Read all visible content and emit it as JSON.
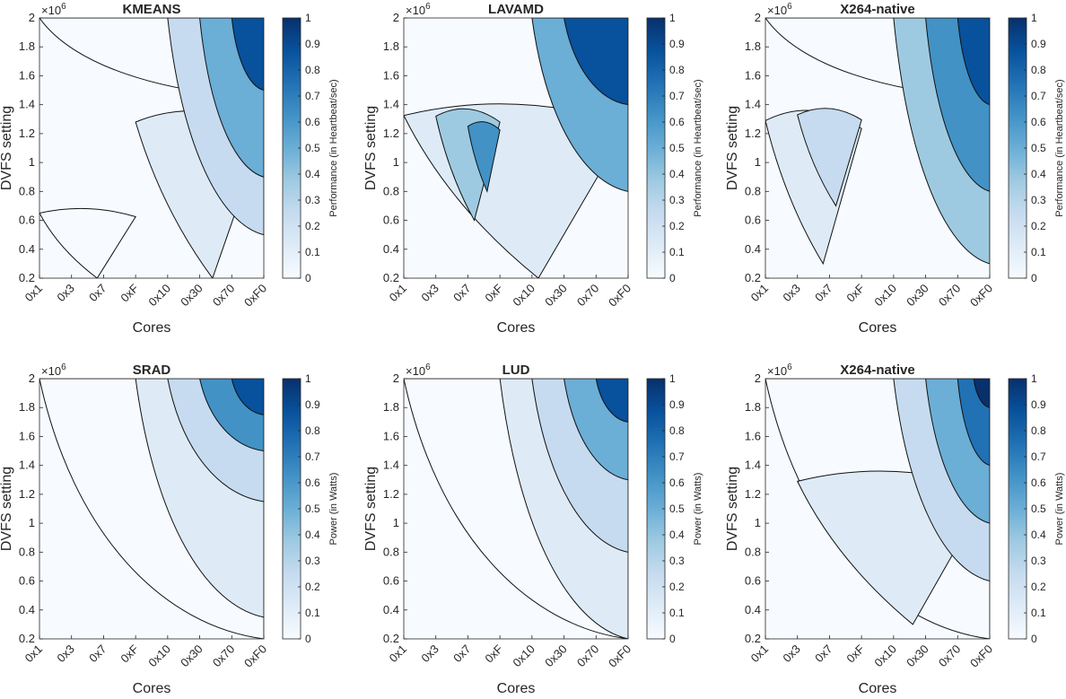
{
  "chart_data": {
    "type": "contour",
    "x_ticklabels": [
      "0x1",
      "0x3",
      "0x7",
      "0xF",
      "0x10",
      "0x30",
      "0x70",
      "0xF0"
    ],
    "y_ticks": [
      0.2,
      0.4,
      0.6,
      0.8,
      1,
      1.2,
      1.4,
      1.6,
      1.8,
      2
    ],
    "y_exponent_label": "×10",
    "y_exponent": "6",
    "colorbar_ticks": [
      0,
      0.1,
      0.2,
      0.3,
      0.4,
      0.5,
      0.6,
      0.7,
      0.8,
      0.9,
      1
    ],
    "colormap": [
      "#f7fbff",
      "#deebf7",
      "#c6dbef",
      "#9ecae1",
      "#6baed6",
      "#4292c6",
      "#2171b5",
      "#08519c",
      "#08306b"
    ],
    "xlabel": "Cores",
    "ylabel": "DVFS setting",
    "panels": [
      {
        "title": "KMEANS",
        "colorbar_label": "Performance (in Heartbeat/sec)",
        "pattern": "x",
        "levels": [
          {
            "x": [
              1,
              8
            ],
            "y": [
              1.45,
              2.0
            ],
            "v": 0.0
          },
          {
            "x": [
              1,
              4
            ],
            "y": [
              0.2,
              0.7
            ],
            "v": 0.05
          },
          {
            "x": [
              4,
              8
            ],
            "y": [
              0.2,
              1.4
            ],
            "v": 0.18
          },
          {
            "x": [
              5,
              8
            ],
            "y": [
              0.5,
              2.0
            ],
            "v": 0.3
          },
          {
            "x": [
              6,
              8
            ],
            "y": [
              0.9,
              2.0
            ],
            "v": 0.55
          },
          {
            "x": [
              7,
              8
            ],
            "y": [
              1.5,
              2.0
            ],
            "v": 0.85
          }
        ]
      },
      {
        "title": "LAVAMD",
        "colorbar_label": "Performance (in Heartbeat/sec)",
        "pattern": "mixed",
        "levels": [
          {
            "x": [
              1,
              8
            ],
            "y": [
              0.2,
              1.45
            ],
            "v": 0.1
          },
          {
            "x": [
              2,
              4
            ],
            "y": [
              0.6,
              1.4
            ],
            "v": 0.4
          },
          {
            "x": [
              3,
              4
            ],
            "y": [
              0.8,
              1.3
            ],
            "v": 0.65
          },
          {
            "x": [
              5,
              8
            ],
            "y": [
              0.8,
              2.0
            ],
            "v": 0.5
          },
          {
            "x": [
              6,
              8
            ],
            "y": [
              1.4,
              2.0
            ],
            "v": 0.85
          }
        ]
      },
      {
        "title": "X264-native",
        "colorbar_label": "Performance (in Heartbeat/sec)",
        "pattern": "x",
        "levels": [
          {
            "x": [
              1,
              8
            ],
            "y": [
              1.45,
              2.0
            ],
            "v": 0.0
          },
          {
            "x": [
              1,
              4
            ],
            "y": [
              0.3,
              1.4
            ],
            "v": 0.08
          },
          {
            "x": [
              2,
              4
            ],
            "y": [
              0.7,
              1.4
            ],
            "v": 0.2
          },
          {
            "x": [
              5,
              8
            ],
            "y": [
              0.3,
              2.0
            ],
            "v": 0.35
          },
          {
            "x": [
              6,
              8
            ],
            "y": [
              0.8,
              2.0
            ],
            "v": 0.6
          },
          {
            "x": [
              7,
              8
            ],
            "y": [
              1.4,
              2.0
            ],
            "v": 0.9
          }
        ]
      },
      {
        "title": "SRAD",
        "colorbar_label": "Power (in Watts)",
        "pattern": "corner",
        "levels": [
          {
            "x": [
              1,
              8
            ],
            "y": [
              0.2,
              2.0
            ],
            "v": 0.0
          },
          {
            "x": [
              4,
              8
            ],
            "y": [
              0.35,
              2.0
            ],
            "v": 0.1
          },
          {
            "x": [
              5,
              8
            ],
            "y": [
              1.15,
              2.0
            ],
            "v": 0.3
          },
          {
            "x": [
              6,
              8
            ],
            "y": [
              1.5,
              2.0
            ],
            "v": 0.6
          },
          {
            "x": [
              7,
              8
            ],
            "y": [
              1.75,
              2.0
            ],
            "v": 0.9
          }
        ]
      },
      {
        "title": "LUD",
        "colorbar_label": "Power (in Watts)",
        "pattern": "corner",
        "levels": [
          {
            "x": [
              1,
              8
            ],
            "y": [
              0.2,
              2.0
            ],
            "v": 0.0
          },
          {
            "x": [
              4,
              8
            ],
            "y": [
              0.2,
              2.0
            ],
            "v": 0.1
          },
          {
            "x": [
              5,
              8
            ],
            "y": [
              0.8,
              2.0
            ],
            "v": 0.25
          },
          {
            "x": [
              6,
              8
            ],
            "y": [
              1.3,
              2.0
            ],
            "v": 0.5
          },
          {
            "x": [
              7,
              8
            ],
            "y": [
              1.7,
              2.0
            ],
            "v": 0.85
          }
        ]
      },
      {
        "title": "X264-native",
        "colorbar_label": "Power (in Watts)",
        "pattern": "corner",
        "levels": [
          {
            "x": [
              1,
              8
            ],
            "y": [
              0.2,
              2.0
            ],
            "v": 0.0
          },
          {
            "x": [
              2,
              8
            ],
            "y": [
              0.3,
              1.4
            ],
            "v": 0.1
          },
          {
            "x": [
              5,
              8
            ],
            "y": [
              0.6,
              2.0
            ],
            "v": 0.25
          },
          {
            "x": [
              6,
              8
            ],
            "y": [
              1.0,
              2.0
            ],
            "v": 0.45
          },
          {
            "x": [
              7,
              8
            ],
            "y": [
              1.4,
              2.0
            ],
            "v": 0.7
          },
          {
            "x": [
              7.5,
              8
            ],
            "y": [
              1.8,
              2.0
            ],
            "v": 0.95
          }
        ]
      }
    ]
  }
}
